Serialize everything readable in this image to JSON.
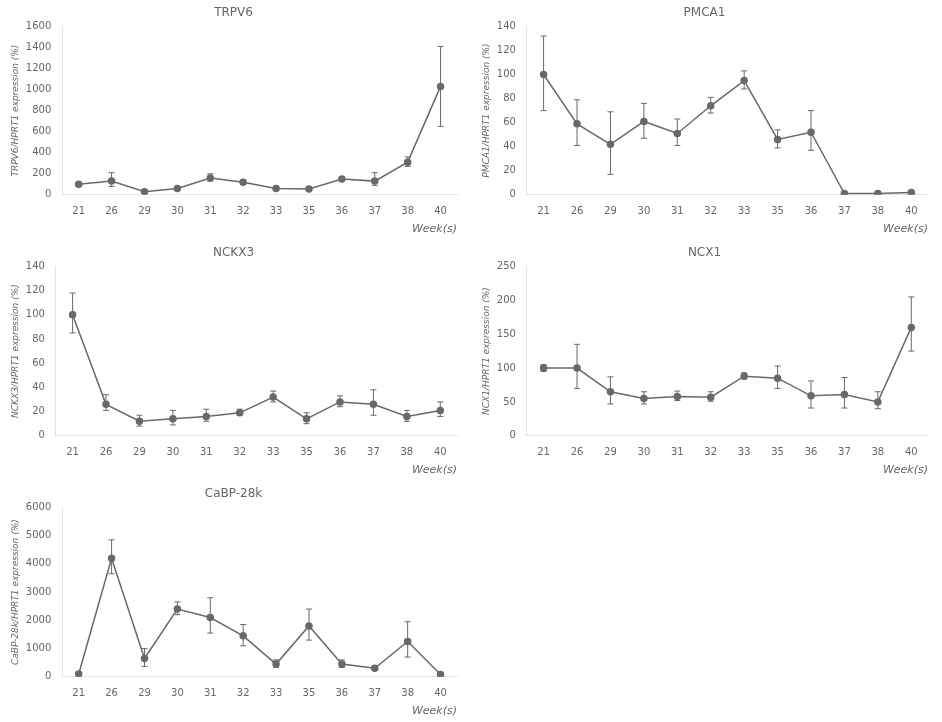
{
  "chart_data": [
    {
      "type": "line",
      "title": "TRPV6",
      "y_label": "TRPV6/HPRT1 expression (%)",
      "x_label": "Week(s)",
      "categories": [
        "21",
        "26",
        "29",
        "30",
        "31",
        "32",
        "33",
        "35",
        "36",
        "37",
        "38",
        "40"
      ],
      "values": [
        100,
        130,
        30,
        60,
        160,
        120,
        60,
        55,
        150,
        130,
        310,
        1030
      ],
      "yerr_upper": [
        20,
        80,
        15,
        10,
        40,
        20,
        15,
        10,
        20,
        80,
        50,
        380
      ],
      "yerr_lower": [
        20,
        50,
        10,
        10,
        30,
        20,
        10,
        8,
        20,
        40,
        40,
        380
      ],
      "ylim": [
        0,
        1600
      ],
      "yticks": [
        0,
        200,
        400,
        600,
        800,
        1000,
        1200,
        1400,
        1600
      ],
      "color": "#696969",
      "marker": "circle",
      "grid": false
    },
    {
      "type": "line",
      "title": "PMCA1",
      "y_label": "PMCA1/HPRT1 expression (%)",
      "x_label": "Week(s)",
      "categories": [
        "21",
        "26",
        "29",
        "30",
        "31",
        "32",
        "33",
        "35",
        "36",
        "37",
        "38",
        "40"
      ],
      "values": [
        100,
        59,
        42,
        61,
        51,
        74,
        95,
        46,
        52,
        1,
        1,
        2
      ],
      "yerr_upper": [
        32,
        20,
        27,
        15,
        12,
        7,
        8,
        8,
        18,
        1,
        1,
        1
      ],
      "yerr_lower": [
        30,
        18,
        25,
        14,
        10,
        6,
        7,
        7,
        15,
        1,
        1,
        1
      ],
      "ylim": [
        0,
        140
      ],
      "yticks": [
        0,
        20,
        40,
        60,
        80,
        100,
        120,
        140
      ],
      "color": "#696969",
      "marker": "circle",
      "grid": false
    },
    {
      "type": "line",
      "title": "NCKX3",
      "y_label": "NCKX3/HPRT1 expression (%)",
      "x_label": "Week(s)",
      "categories": [
        "21",
        "26",
        "29",
        "30",
        "31",
        "32",
        "33",
        "35",
        "36",
        "37",
        "38",
        "40"
      ],
      "values": [
        100,
        26,
        12,
        14,
        16,
        19,
        32,
        14,
        28,
        26,
        16,
        21
      ],
      "yerr_upper": [
        18,
        8,
        5,
        7,
        6,
        3,
        5,
        5,
        5,
        12,
        5,
        7
      ],
      "yerr_lower": [
        15,
        5,
        4,
        5,
        4,
        2,
        4,
        4,
        4,
        9,
        4,
        5
      ],
      "ylim": [
        0,
        140
      ],
      "yticks": [
        0,
        20,
        40,
        60,
        80,
        100,
        120,
        140
      ],
      "color": "#696969",
      "marker": "circle",
      "grid": false
    },
    {
      "type": "line",
      "title": "NCX1",
      "y_label": "NCX1/HPRT1 expression (%)",
      "x_label": "Week(s)",
      "categories": [
        "21",
        "26",
        "29",
        "30",
        "31",
        "32",
        "33",
        "35",
        "36",
        "37",
        "38",
        "40"
      ],
      "values": [
        100,
        100,
        65,
        55,
        58,
        57,
        88,
        85,
        59,
        61,
        50,
        160
      ],
      "yerr_upper": [
        5,
        35,
        22,
        10,
        8,
        8,
        5,
        18,
        22,
        25,
        15,
        45
      ],
      "yerr_lower": [
        5,
        30,
        18,
        8,
        6,
        6,
        4,
        15,
        18,
        20,
        10,
        35
      ],
      "ylim": [
        0,
        250
      ],
      "yticks": [
        0,
        50,
        100,
        150,
        200,
        250
      ],
      "color": "#696969",
      "marker": "circle",
      "grid": false
    },
    {
      "type": "line",
      "title": "CaBP-28k",
      "y_label": "CaBP-28k/HPRT1 expression (%)",
      "x_label": "Week(s)",
      "categories": [
        "21",
        "26",
        "29",
        "30",
        "31",
        "32",
        "33",
        "35",
        "36",
        "37",
        "38",
        "40"
      ],
      "values": [
        100,
        4200,
        650,
        2400,
        2100,
        1450,
        450,
        1800,
        450,
        300,
        1250,
        80
      ],
      "yerr_upper": [
        80,
        650,
        350,
        250,
        700,
        400,
        150,
        600,
        150,
        80,
        700,
        50
      ],
      "yerr_lower": [
        60,
        550,
        280,
        200,
        550,
        350,
        120,
        500,
        120,
        60,
        550,
        40
      ],
      "ylim": [
        0,
        6000
      ],
      "yticks": [
        0,
        1000,
        2000,
        3000,
        4000,
        5000,
        6000
      ],
      "color": "#696969",
      "marker": "circle",
      "grid": false
    }
  ]
}
